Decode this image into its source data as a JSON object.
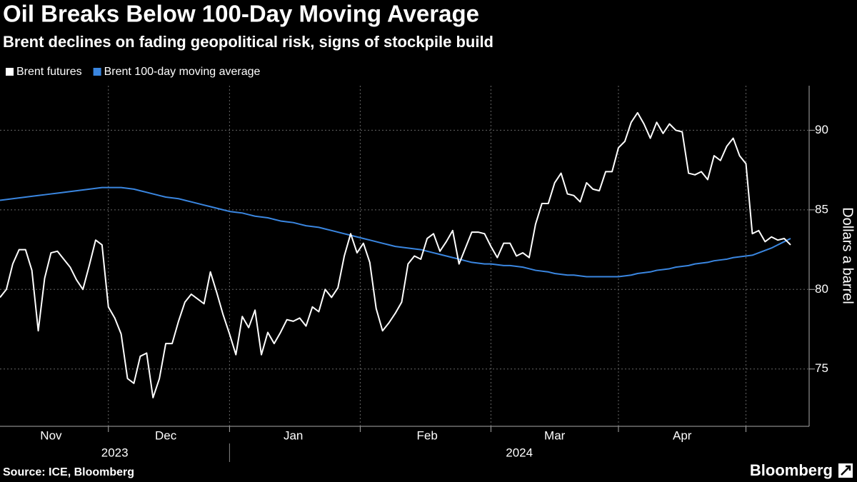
{
  "chart_data": {
    "type": "line",
    "title": "Oil Breaks Below 100-Day Moving Average",
    "subtitle": "Brent declines on fading geopolitical risk, signs of stockpile build",
    "y_label": "Dollars a barrel",
    "source": "Source: ICE, Bloomberg",
    "brand": "Bloomberg",
    "years": [
      "2023",
      "2024"
    ],
    "categories": [
      null,
      null,
      null,
      null,
      null,
      null,
      null,
      null,
      "Nov",
      null,
      null,
      null,
      null,
      null,
      null,
      null,
      null,
      null,
      null,
      null,
      null,
      null,
      null,
      null,
      null,
      null,
      "Dec",
      null,
      null,
      null,
      null,
      null,
      null,
      null,
      null,
      null,
      null,
      null,
      null,
      null,
      null,
      null,
      null,
      null,
      null,
      null,
      "Jan",
      null,
      null,
      null,
      null,
      null,
      null,
      null,
      null,
      null,
      null,
      null,
      null,
      null,
      null,
      null,
      null,
      null,
      null,
      null,
      null,
      "Feb",
      null,
      null,
      null,
      null,
      null,
      null,
      null,
      null,
      null,
      null,
      null,
      null,
      null,
      null,
      null,
      null,
      null,
      null,
      null,
      "Mar",
      null,
      null,
      null,
      null,
      null,
      null,
      null,
      null,
      null,
      null,
      null,
      null,
      null,
      null,
      null,
      null,
      null,
      null,
      null,
      "Apr",
      null,
      null,
      null,
      null,
      null,
      null,
      null,
      null,
      null,
      null,
      null,
      null,
      null,
      null,
      null,
      null,
      null
    ],
    "series": [
      {
        "name": "Brent futures",
        "color": "#ffffff",
        "values": [
          79.5,
          80.0,
          81.6,
          82.5,
          82.5,
          81.2,
          77.4,
          80.7,
          82.3,
          82.4,
          81.9,
          81.4,
          80.6,
          80.0,
          81.5,
          83.1,
          82.8,
          78.9,
          78.2,
          77.2,
          74.4,
          74.1,
          75.8,
          76.0,
          73.2,
          74.4,
          76.6,
          76.6,
          78.0,
          79.2,
          79.7,
          79.4,
          79.1,
          81.1,
          79.8,
          78.4,
          77.2,
          75.9,
          78.3,
          77.6,
          78.7,
          75.9,
          77.3,
          76.6,
          77.3,
          78.1,
          78.0,
          78.2,
          77.7,
          78.9,
          78.6,
          80.0,
          79.5,
          80.1,
          82.1,
          83.5,
          82.3,
          82.9,
          81.7,
          78.8,
          77.4,
          77.9,
          78.5,
          79.2,
          81.6,
          82.1,
          81.9,
          83.2,
          83.5,
          82.4,
          83.0,
          83.7,
          81.6,
          82.6,
          83.6,
          83.6,
          83.5,
          82.7,
          82.0,
          82.9,
          82.9,
          82.1,
          82.3,
          82.0,
          84.1,
          85.4,
          85.4,
          86.7,
          87.3,
          86.0,
          85.9,
          85.5,
          86.7,
          86.3,
          86.2,
          87.4,
          87.4,
          88.9,
          89.3,
          90.5,
          91.1,
          90.4,
          89.5,
          90.5,
          89.8,
          90.4,
          90.0,
          89.9,
          87.3,
          87.2,
          87.4,
          86.9,
          88.4,
          88.1,
          89.0,
          89.5,
          88.4,
          87.9,
          83.5,
          83.7,
          83.0,
          83.3,
          83.1,
          83.2,
          82.8
        ]
      },
      {
        "name": "Brent 100-day moving average",
        "color": "#3a86e0",
        "values": [
          85.6,
          85.65,
          85.7,
          85.75,
          85.8,
          85.85,
          85.9,
          85.95,
          86.0,
          86.05,
          86.1,
          86.15,
          86.2,
          86.25,
          86.3,
          86.35,
          86.4,
          86.4,
          86.4,
          86.4,
          86.35,
          86.3,
          86.2,
          86.1,
          86.0,
          85.9,
          85.8,
          85.75,
          85.7,
          85.6,
          85.5,
          85.4,
          85.3,
          85.2,
          85.1,
          85.0,
          84.9,
          84.85,
          84.8,
          84.7,
          84.6,
          84.55,
          84.5,
          84.4,
          84.3,
          84.25,
          84.2,
          84.1,
          84.0,
          83.95,
          83.9,
          83.8,
          83.7,
          83.6,
          83.5,
          83.4,
          83.3,
          83.2,
          83.1,
          83.0,
          82.9,
          82.8,
          82.7,
          82.65,
          82.6,
          82.55,
          82.5,
          82.4,
          82.3,
          82.2,
          82.1,
          82.0,
          81.9,
          81.8,
          81.7,
          81.65,
          81.6,
          81.6,
          81.55,
          81.5,
          81.5,
          81.45,
          81.4,
          81.3,
          81.2,
          81.15,
          81.1,
          81.0,
          80.95,
          80.9,
          80.9,
          80.85,
          80.8,
          80.8,
          80.8,
          80.8,
          80.8,
          80.8,
          80.85,
          80.9,
          81.0,
          81.05,
          81.1,
          81.2,
          81.25,
          81.3,
          81.4,
          81.45,
          81.5,
          81.6,
          81.65,
          81.7,
          81.8,
          81.85,
          81.9,
          82.0,
          82.05,
          82.1,
          82.15,
          82.3,
          82.45,
          82.6,
          82.8,
          83.0,
          83.2
        ]
      }
    ],
    "ylim": [
      71.4,
      92.8
    ],
    "yticks": [
      75,
      80,
      85,
      90
    ],
    "grid": true,
    "legend": "top-left"
  }
}
